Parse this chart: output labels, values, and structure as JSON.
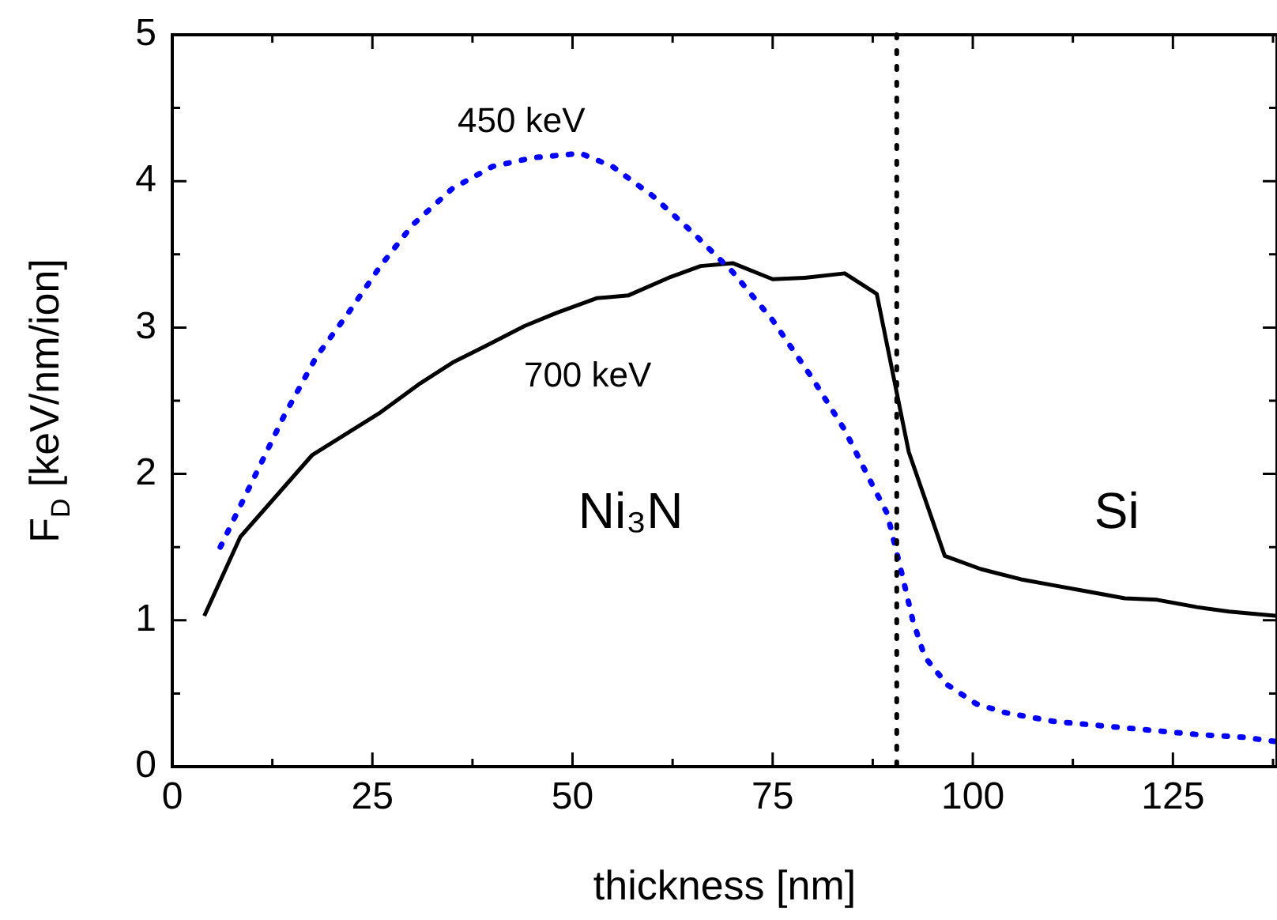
{
  "chart_data": {
    "type": "line",
    "xlabel": "thickness [nm]",
    "ylabel": "F$_{D}$ [keV/nm/ion]",
    "xlim": [
      0,
      138
    ],
    "ylim": [
      0,
      5
    ],
    "xticks": [
      0,
      {
        "value": 12.5,
        "label": null
      },
      25,
      {
        "value": 37.5,
        "label": null
      },
      50,
      {
        "value": 62.5,
        "label": null
      },
      75,
      {
        "value": 87.5,
        "label": null
      },
      100,
      {
        "value": 112.5,
        "label": null
      },
      125,
      {
        "value": 137.5,
        "label": null
      }
    ],
    "yticks": [
      0,
      {
        "value": 0.5,
        "label": null
      },
      1,
      {
        "value": 1.5,
        "label": null
      },
      2,
      {
        "value": 2.5,
        "label": null
      },
      3,
      {
        "value": 3.5,
        "label": null
      },
      4,
      {
        "value": 4.5,
        "label": null
      },
      5
    ],
    "series": [
      {
        "name": "450 keV",
        "color": "#0000ff",
        "line_style": "dotted",
        "x": [
          6,
          10,
          14,
          18,
          22,
          26,
          30,
          35,
          40,
          45,
          51,
          55,
          60,
          65,
          70,
          75,
          80,
          84,
          87.5,
          89.3,
          91,
          92.5,
          94,
          96.8,
          100.4,
          104,
          110,
          116,
          122,
          128,
          134,
          138
        ],
        "values": [
          1.5,
          1.95,
          2.4,
          2.8,
          3.1,
          3.42,
          3.7,
          3.95,
          4.1,
          4.16,
          4.19,
          4.1,
          3.9,
          3.65,
          3.38,
          3.05,
          2.65,
          2.3,
          1.92,
          1.73,
          1.35,
          1.0,
          0.75,
          0.56,
          0.43,
          0.37,
          0.31,
          0.28,
          0.25,
          0.22,
          0.2,
          0.17
        ]
      },
      {
        "name": "700 keV",
        "color": "#000000",
        "line_style": "solid",
        "x": [
          4,
          8.5,
          17.5,
          26,
          31,
          35,
          39,
          44,
          48,
          53,
          57,
          62,
          66,
          70,
          75,
          79,
          84,
          88,
          92,
          96.5,
          101,
          106,
          110,
          114,
          119,
          123,
          128,
          132,
          138
        ],
        "values": [
          1.03,
          1.57,
          2.13,
          2.42,
          2.62,
          2.76,
          2.87,
          3.01,
          3.1,
          3.2,
          3.22,
          3.34,
          3.42,
          3.44,
          3.33,
          3.34,
          3.37,
          3.23,
          2.15,
          1.44,
          1.35,
          1.28,
          1.24,
          1.2,
          1.15,
          1.14,
          1.09,
          1.06,
          1.03
        ]
      }
    ],
    "ref_lines": [
      {
        "axis": "x",
        "value": 90.5,
        "color": "#000000",
        "line_style": "dotted"
      }
    ],
    "annotations": [
      "Ni₃N",
      "Si"
    ]
  }
}
